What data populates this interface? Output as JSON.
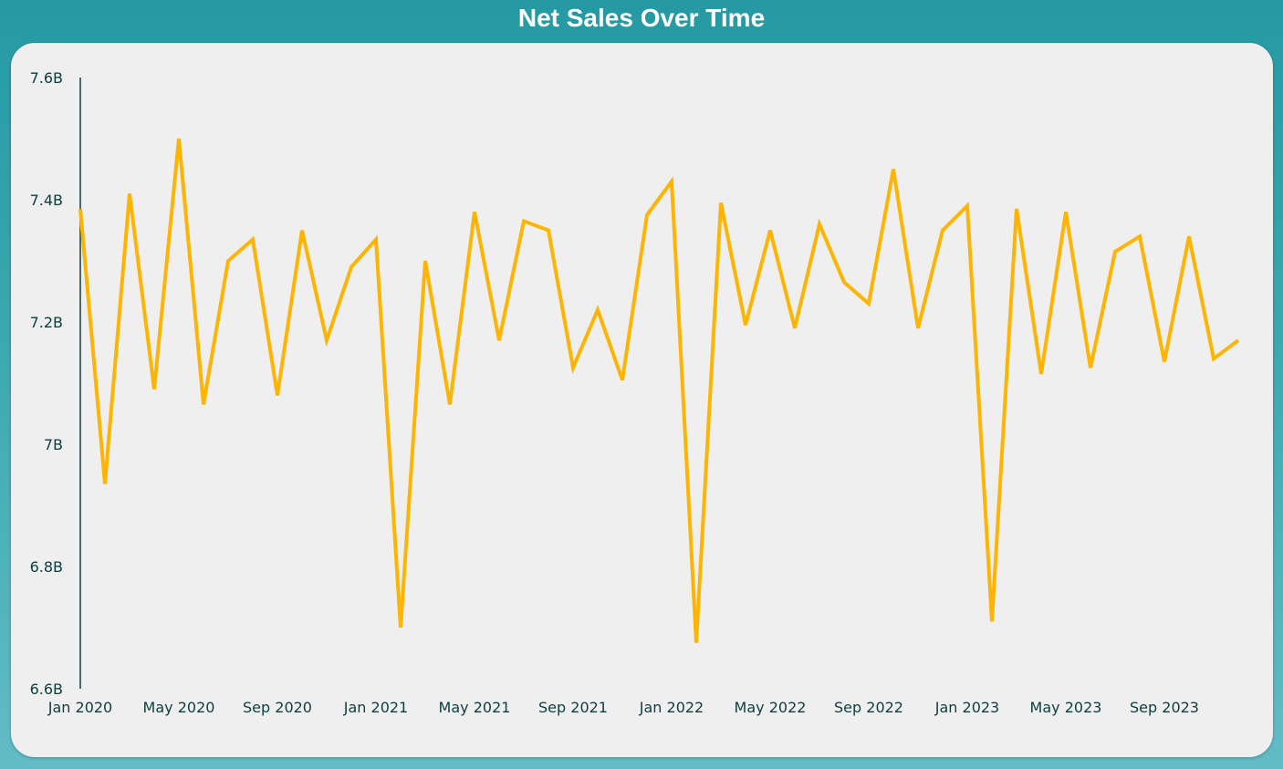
{
  "chart_data": {
    "type": "line",
    "title": "Net Sales Over Time",
    "xlabel": "",
    "ylabel": "",
    "x": [
      "Jan 2020",
      "Feb 2020",
      "Mar 2020",
      "Apr 2020",
      "May 2020",
      "Jun 2020",
      "Jul 2020",
      "Aug 2020",
      "Sep 2020",
      "Oct 2020",
      "Nov 2020",
      "Dec 2020",
      "Jan 2021",
      "Feb 2021",
      "Mar 2021",
      "Apr 2021",
      "May 2021",
      "Jun 2021",
      "Jul 2021",
      "Aug 2021",
      "Sep 2021",
      "Oct 2021",
      "Nov 2021",
      "Dec 2021",
      "Jan 2022",
      "Feb 2022",
      "Mar 2022",
      "Apr 2022",
      "May 2022",
      "Jun 2022",
      "Jul 2022",
      "Aug 2022",
      "Sep 2022",
      "Oct 2022",
      "Nov 2022",
      "Dec 2022",
      "Jan 2023",
      "Feb 2023",
      "Mar 2023",
      "Apr 2023",
      "May 2023",
      "Jun 2023",
      "Jul 2023",
      "Aug 2023",
      "Sep 2023",
      "Oct 2023",
      "Nov 2023",
      "Dec 2023"
    ],
    "series": [
      {
        "values": [
          7.385,
          6.935,
          7.41,
          7.09,
          7.5,
          7.065,
          7.3,
          7.335,
          7.08,
          7.35,
          7.17,
          7.29,
          7.335,
          6.7,
          7.3,
          7.065,
          7.38,
          7.17,
          7.365,
          7.35,
          7.125,
          7.22,
          7.105,
          7.375,
          7.43,
          6.675,
          7.395,
          7.195,
          7.35,
          7.19,
          7.36,
          7.265,
          7.23,
          7.45,
          7.19,
          7.35,
          7.39,
          6.71,
          7.385,
          7.115,
          7.38,
          7.125,
          7.315,
          7.34,
          7.135,
          7.34,
          7.14,
          7.17
        ],
        "unit": "B"
      }
    ],
    "ylim": [
      6.6,
      7.6
    ],
    "y_ticks": [
      "6.6B",
      "6.8B",
      "7B",
      "7.2B",
      "7.4B",
      "7.6B"
    ],
    "y_tick_values": [
      6.6,
      6.8,
      7.0,
      7.2,
      7.4,
      7.6
    ],
    "x_tick_labels": [
      "Jan 2020",
      "May 2020",
      "Sep 2020",
      "Jan 2021",
      "May 2021",
      "Sep 2021",
      "Jan 2022",
      "May 2022",
      "Sep 2022",
      "Jan 2023",
      "May 2023",
      "Sep 2023"
    ],
    "x_tick_indices": [
      0,
      4,
      8,
      12,
      16,
      20,
      24,
      28,
      32,
      36,
      40,
      44
    ],
    "grid": false,
    "legend": "none",
    "colors": {
      "line": "#fdb502",
      "axis": "#0e3d3d",
      "title": "#ffffff",
      "card": "#efefef",
      "background": "#259aa3"
    }
  }
}
